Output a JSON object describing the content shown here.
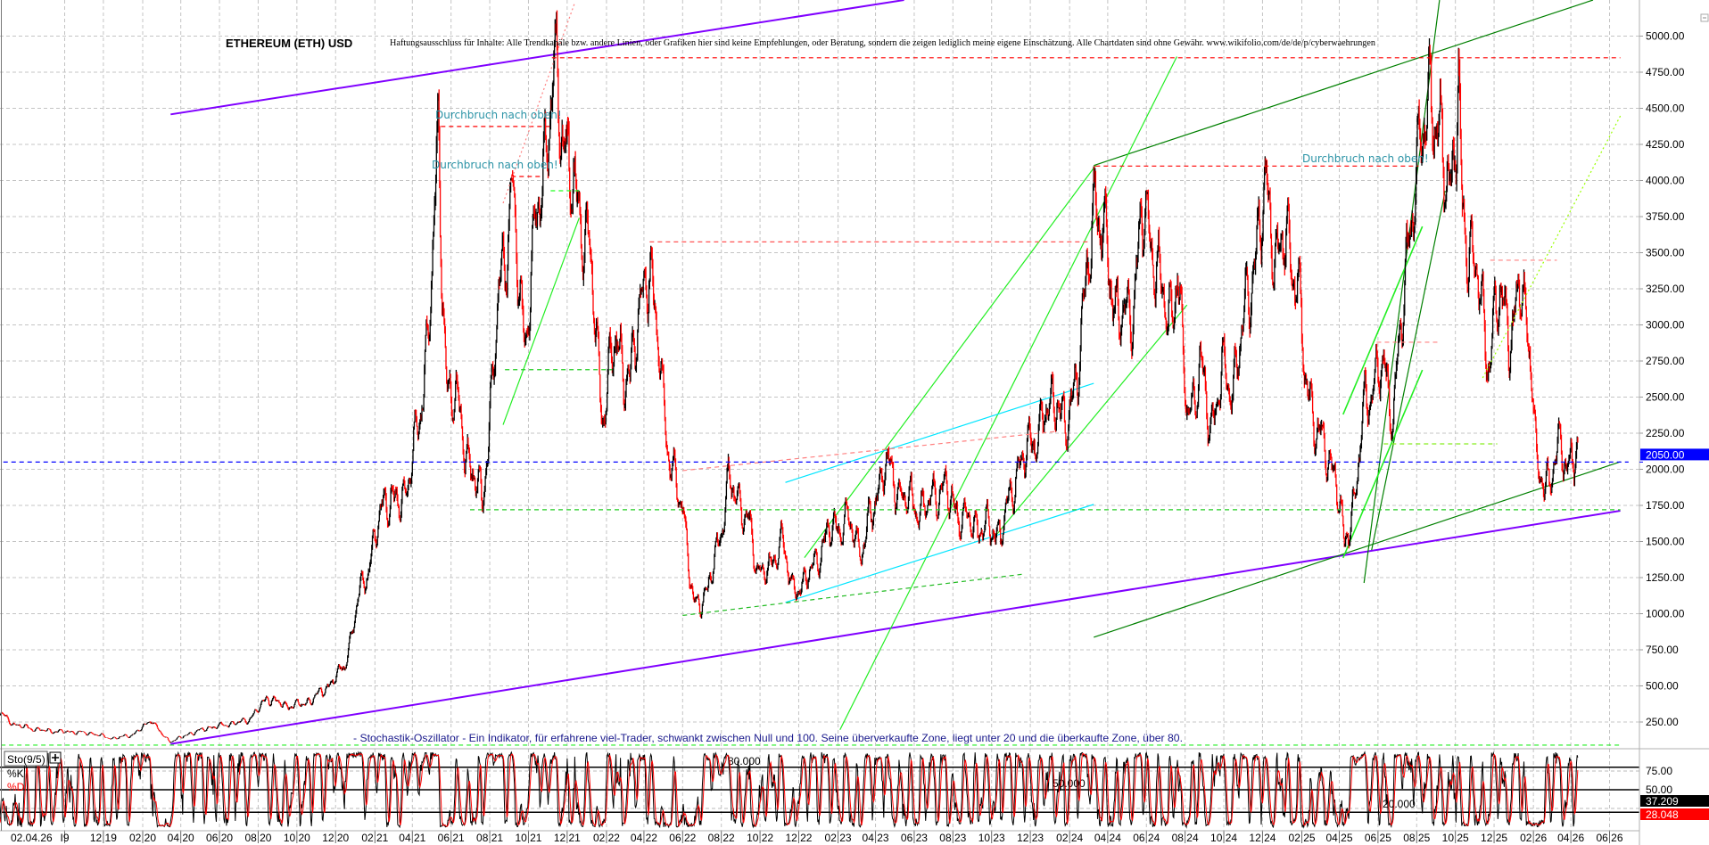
{
  "header": {
    "title": "ETHEREUM (ETH) USD",
    "disclaimer": "Haftungsausschluss für Inhalte: Alle Trendkanäle bzw. andere Linien, oder Grafiken hier sind keine Empfehlungen, oder Beratung, sondern die zeigen lediglich meine eigene Einschätzung. Alle Chartdaten sind ohne Gewähr. www.wikifolio.com/de/de/p/cyberwaehrungen"
  },
  "annotations": {
    "breakout_1": "Durchbruch nach oben!",
    "breakout_2": "Durchbruch nach oben!",
    "breakout_3": "Durchbruch nach oben!",
    "stochastic_note": "- Stochastik-Oszillator - Ein Indikator, für erfahrene viel-Trader, schwankt zwischen Null und 100. Seine überverkaufte Zone, liegt unter 20 und die überkaufte Zone, über 80."
  },
  "chart_data": [
    {
      "type": "candlestick",
      "title": "ETHEREUM (ETH) USD",
      "ylim": [
        0,
        5250
      ],
      "y_ticks": [
        "250.00",
        "500.00",
        "750.00",
        "1000.00",
        "1250.00",
        "1500.00",
        "1750.00",
        "2000.00",
        "2250.00",
        "2500.00",
        "2750.00",
        "3000.00",
        "3250.00",
        "3500.00",
        "3750.00",
        "4000.00",
        "4250.00",
        "4500.00",
        "4750.00",
        "5000.00"
      ],
      "grid": true,
      "current_price": {
        "value": 2050,
        "label": "2050.00",
        "color": "#0000ff"
      },
      "up_color": "#000000",
      "down_color": "#ff0000",
      "close_path": [
        [
          "2019-06-15",
          340
        ],
        [
          "2019-07-15",
          230
        ],
        [
          "2019-08-15",
          200
        ],
        [
          "2019-09-15",
          185
        ],
        [
          "2019-10-15",
          180
        ],
        [
          "2019-11-15",
          170
        ],
        [
          "2019-12-15",
          135
        ],
        [
          "2020-01-15",
          160
        ],
        [
          "2020-02-15",
          270
        ],
        [
          "2020-03-15",
          115
        ],
        [
          "2020-04-15",
          170
        ],
        [
          "2020-05-15",
          210
        ],
        [
          "2020-06-15",
          235
        ],
        [
          "2020-07-15",
          260
        ],
        [
          "2020-08-15",
          420
        ],
        [
          "2020-09-15",
          360
        ],
        [
          "2020-10-15",
          380
        ],
        [
          "2020-11-15",
          480
        ],
        [
          "2020-12-15",
          640
        ],
        [
          "2021-01-05",
          1100
        ],
        [
          "2021-01-20",
          1300
        ],
        [
          "2021-02-15",
          1800
        ],
        [
          "2021-03-15",
          1750
        ],
        [
          "2021-04-15",
          2400
        ],
        [
          "2021-05-12",
          4250
        ],
        [
          "2021-05-25",
          2600
        ],
        [
          "2021-06-15",
          2400
        ],
        [
          "2021-07-01",
          2000
        ],
        [
          "2021-07-20",
          1800
        ],
        [
          "2021-08-15",
          3200
        ],
        [
          "2021-09-05",
          3900
        ],
        [
          "2021-09-25",
          2900
        ],
        [
          "2021-10-15",
          3800
        ],
        [
          "2021-11-10",
          4700
        ],
        [
          "2021-11-28",
          4300
        ],
        [
          "2021-12-15",
          3800
        ],
        [
          "2022-01-05",
          3600
        ],
        [
          "2022-01-25",
          2400
        ],
        [
          "2022-02-15",
          2900
        ],
        [
          "2022-03-10",
          2600
        ],
        [
          "2022-04-03",
          3450
        ],
        [
          "2022-04-25",
          2900
        ],
        [
          "2022-05-12",
          2000
        ],
        [
          "2022-06-01",
          1800
        ],
        [
          "2022-06-18",
          1050
        ],
        [
          "2022-07-10",
          1150
        ],
        [
          "2022-08-12",
          1900
        ],
        [
          "2022-09-10",
          1700
        ],
        [
          "2022-09-25",
          1320
        ],
        [
          "2022-10-20",
          1300
        ],
        [
          "2022-11-05",
          1580
        ],
        [
          "2022-11-20",
          1150
        ],
        [
          "2022-12-15",
          1250
        ],
        [
          "2023-01-15",
          1550
        ],
        [
          "2023-02-15",
          1650
        ],
        [
          "2023-03-10",
          1450
        ],
        [
          "2023-04-15",
          2050
        ],
        [
          "2023-05-15",
          1800
        ],
        [
          "2023-06-15",
          1720
        ],
        [
          "2023-07-15",
          1880
        ],
        [
          "2023-08-18",
          1650
        ],
        [
          "2023-09-15",
          1600
        ],
        [
          "2023-10-15",
          1560
        ],
        [
          "2023-11-10",
          2000
        ],
        [
          "2023-12-15",
          2280
        ],
        [
          "2024-01-12",
          2550
        ],
        [
          "2024-01-25",
          2220
        ],
        [
          "2024-02-20",
          2950
        ],
        [
          "2024-03-12",
          3950
        ],
        [
          "2024-04-15",
          3100
        ],
        [
          "2024-05-05",
          3000
        ],
        [
          "2024-05-25",
          3750
        ],
        [
          "2024-06-15",
          3500
        ],
        [
          "2024-07-05",
          3000
        ],
        [
          "2024-07-20",
          3400
        ],
        [
          "2024-08-05",
          2350
        ],
        [
          "2024-08-25",
          2700
        ],
        [
          "2024-09-10",
          2300
        ],
        [
          "2024-09-28",
          2650
        ],
        [
          "2024-10-15",
          2600
        ],
        [
          "2024-11-12",
          3300
        ],
        [
          "2024-12-08",
          3950
        ],
        [
          "2024-12-25",
          3400
        ],
        [
          "2025-01-07",
          3650
        ],
        [
          "2025-01-25",
          3300
        ],
        [
          "2025-02-05",
          2700
        ],
        [
          "2025-03-01",
          2200
        ],
        [
          "2025-03-25",
          2000
        ],
        [
          "2025-04-09",
          1480
        ],
        [
          "2025-04-25",
          1800
        ],
        [
          "2025-05-12",
          2500
        ],
        [
          "2025-06-10",
          2700
        ],
        [
          "2025-06-25",
          2400
        ],
        [
          "2025-07-20",
          3700
        ],
        [
          "2025-08-23",
          4700
        ],
        [
          "2025-09-01",
          4300
        ],
        [
          "2025-09-25",
          4000
        ],
        [
          "2025-10-06",
          4550
        ],
        [
          "2025-10-11",
          3800
        ],
        [
          "2025-11-05",
          3300
        ],
        [
          "2025-11-21",
          2800
        ],
        [
          "2025-12-10",
          3200
        ],
        [
          "2025-12-31",
          2950
        ],
        [
          "2026-01-14",
          3300
        ],
        [
          "2026-01-31",
          2650
        ],
        [
          "2026-02-06",
          1950
        ],
        [
          "2026-02-25",
          1920
        ],
        [
          "2026-03-15",
          2150
        ],
        [
          "2026-03-25",
          2050
        ],
        [
          "2026-04-12",
          2080
        ]
      ],
      "x_ticks": [
        {
          "date": "2019-10-01",
          "label": "I9"
        },
        {
          "date": "2019-12-01",
          "label": "12 19"
        },
        {
          "date": "2020-02-01",
          "label": "02 20"
        },
        {
          "date": "2020-04-01",
          "label": "04 20"
        },
        {
          "date": "2020-06-01",
          "label": "06 20"
        },
        {
          "date": "2020-08-01",
          "label": "08 20"
        },
        {
          "date": "2020-10-01",
          "label": "10 20"
        },
        {
          "date": "2020-12-01",
          "label": "12 20"
        },
        {
          "date": "2021-02-01",
          "label": "02 21"
        },
        {
          "date": "2021-04-01",
          "label": "04 21"
        },
        {
          "date": "2021-06-01",
          "label": "06 21"
        },
        {
          "date": "2021-08-01",
          "label": "08 21"
        },
        {
          "date": "2021-10-01",
          "label": "10 21"
        },
        {
          "date": "2021-12-01",
          "label": "12 21"
        },
        {
          "date": "2022-02-01",
          "label": "02 22"
        },
        {
          "date": "2022-04-01",
          "label": "04 22"
        },
        {
          "date": "2022-06-01",
          "label": "06 22"
        },
        {
          "date": "2022-08-01",
          "label": "08 22"
        },
        {
          "date": "2022-10-01",
          "label": "10 22"
        },
        {
          "date": "2022-12-01",
          "label": "12 22"
        },
        {
          "date": "2023-02-01",
          "label": "02 23"
        },
        {
          "date": "2023-04-01",
          "label": "04 23"
        },
        {
          "date": "2023-06-01",
          "label": "06 23"
        },
        {
          "date": "2023-08-01",
          "label": "08 23"
        },
        {
          "date": "2023-10-01",
          "label": "10 23"
        },
        {
          "date": "2023-12-01",
          "label": "12 23"
        },
        {
          "date": "2024-02-01",
          "label": "02 24"
        },
        {
          "date": "2024-04-01",
          "label": "04 24"
        },
        {
          "date": "2024-06-01",
          "label": "06 24"
        },
        {
          "date": "2024-08-01",
          "label": "08 24"
        },
        {
          "date": "2024-10-01",
          "label": "10 24"
        },
        {
          "date": "2024-12-01",
          "label": "12 24"
        },
        {
          "date": "2025-02-01",
          "label": "02 25"
        },
        {
          "date": "2025-04-01",
          "label": "04 25"
        },
        {
          "date": "2025-06-01",
          "label": "06 25"
        },
        {
          "date": "2025-08-01",
          "label": "08 25"
        },
        {
          "date": "2025-10-01",
          "label": "10 25"
        },
        {
          "date": "2025-12-01",
          "label": "12 25"
        },
        {
          "date": "2026-02-01",
          "label": "02 26"
        },
        {
          "date": "2026-04-01",
          "label": "04 26"
        },
        {
          "date": "2026-06-01",
          "label": "06 26"
        }
      ],
      "first_x_label": "02.04.26",
      "trendlines": [
        {
          "color": "#8000ff",
          "style": "solid",
          "from": [
            "2020-03-16",
            4458
          ],
          "to": [
            "2023-05-16",
            5250
          ]
        },
        {
          "color": "#8000ff",
          "style": "solid",
          "from": [
            "2020-03-16",
            98
          ],
          "to": [
            "2026-06-18",
            1713
          ]
        },
        {
          "color": "#008000",
          "style": "solid",
          "from": [
            "2024-03-10",
            837
          ],
          "to": [
            "2026-06-18",
            2052
          ]
        },
        {
          "color": "#008000",
          "style": "solid",
          "from": [
            "2024-03-10",
            4104
          ],
          "to": [
            "2026-05-06",
            5250
          ]
        },
        {
          "color": "#008000",
          "style": "solid",
          "from": [
            "2025-05-10",
            1213
          ],
          "to": [
            "2025-09-06",
            5250
          ]
        },
        {
          "color": "#008000",
          "style": "solid",
          "from": [
            "2025-05-22",
            1441
          ],
          "to": [
            "2025-09-15",
            3929
          ]
        },
        {
          "color": "#22ee22",
          "style": "solid",
          "from": [
            "2025-04-07",
            2380
          ],
          "to": [
            "2025-08-10",
            3682
          ]
        },
        {
          "color": "#22ee22",
          "style": "solid",
          "from": [
            "2025-04-07",
            1386
          ],
          "to": [
            "2025-08-10",
            2688
          ]
        },
        {
          "color": "#22ee22",
          "style": "solid",
          "from": [
            "2023-02-04",
            196
          ],
          "to": [
            "2024-07-19",
            4858
          ]
        },
        {
          "color": "#22ee22",
          "style": "solid",
          "from": [
            "2022-12-10",
            1388
          ],
          "to": [
            "2024-03-13",
            4104
          ]
        },
        {
          "color": "#22ee22",
          "style": "solid",
          "from": [
            "2023-10-10",
            1554
          ],
          "to": [
            "2024-08-04",
            3138
          ]
        },
        {
          "color": "#22ee22",
          "style": "solid",
          "from": [
            "2021-08-22",
            2308
          ],
          "to": [
            "2021-12-20",
            3741
          ]
        },
        {
          "color": "#99ff00",
          "style": "dotted",
          "from": [
            "2025-11-13",
            2633
          ],
          "to": [
            "2026-06-18",
            4447
          ]
        },
        {
          "color": "#22cc22",
          "style": "dashed",
          "from": [
            "2021-07-01",
            1720
          ],
          "to": [
            "2026-06-18",
            1720
          ]
        },
        {
          "color": "#22cc22",
          "style": "dashed",
          "from": [
            "2021-08-25",
            2690
          ],
          "to": [
            "2022-02-10",
            2690
          ]
        },
        {
          "color": "#22ff22",
          "style": "dashed",
          "from": [
            "2021-11-05",
            3929
          ],
          "to": [
            "2021-12-20",
            3929
          ]
        },
        {
          "color": "#88ee22",
          "style": "dashed",
          "from": [
            "2025-06-10",
            2176
          ],
          "to": [
            "2025-12-06",
            2176
          ]
        },
        {
          "color": "#22bb22",
          "style": "dashed",
          "from": [
            "2022-06-01",
            988
          ],
          "to": [
            "2023-11-22",
            1275
          ]
        },
        {
          "color": "#22ee22",
          "style": "dashed",
          "from": [
            "2019-06-10",
            90
          ],
          "to": [
            "2026-06-18",
            90
          ]
        },
        {
          "color": "#00e5ff",
          "style": "solid",
          "from": [
            "2022-11-10",
            1909
          ],
          "to": [
            "2024-03-10",
            2595
          ]
        },
        {
          "color": "#00e5ff",
          "style": "solid",
          "from": [
            "2022-11-10",
            1078
          ],
          "to": [
            "2024-03-10",
            1757
          ]
        },
        {
          "color": "#ff0000",
          "style": "dashed",
          "from": [
            "2021-11-07",
            4850
          ],
          "to": [
            "2026-06-18",
            4850
          ]
        },
        {
          "color": "#ff0000",
          "style": "dashed",
          "from": [
            "2021-05-16",
            4374
          ],
          "to": [
            "2021-11-04",
            4374
          ]
        },
        {
          "color": "#ff0000",
          "style": "dashed",
          "from": [
            "2021-09-04",
            4028
          ],
          "to": [
            "2021-10-22",
            4028
          ]
        },
        {
          "color": "#ff0000",
          "style": "dashed",
          "from": [
            "2024-03-13",
            4100
          ],
          "to": [
            "2025-08-04",
            4100
          ]
        },
        {
          "color": "#ff5555",
          "style": "dashed",
          "from": [
            "2022-04-10",
            3575
          ],
          "to": [
            "2024-03-04",
            3575
          ]
        },
        {
          "color": "#ff8080",
          "style": "dashed",
          "from": [
            "2025-11-25",
            3448
          ],
          "to": [
            "2026-03-10",
            3448
          ]
        },
        {
          "color": "#ff8080",
          "style": "dashed",
          "from": [
            "2025-05-30",
            2880
          ],
          "to": [
            "2025-09-04",
            2880
          ]
        },
        {
          "color": "#ff8080",
          "style": "dashed",
          "from": [
            "2022-06-01",
            1991
          ],
          "to": [
            "2024-01-13",
            2263
          ]
        },
        {
          "color": "#ff8080",
          "style": "dotted",
          "from": [
            "2021-08-22",
            3843
          ],
          "to": [
            "2021-12-13",
            5231
          ]
        },
        {
          "color": "#0000ff",
          "style": "dashed",
          "from": [
            "2019-06-01",
            2050
          ],
          "to": [
            "2026-07-01",
            2050
          ]
        }
      ]
    },
    {
      "type": "line",
      "title": "Sto(9/5)",
      "ylim": [
        0,
        100
      ],
      "series": [
        {
          "name": "%K",
          "color": "#000000",
          "last_value": "37.209"
        },
        {
          "name": "%D",
          "color": "#ff0000",
          "last_value": "28.048"
        }
      ],
      "levels": [
        {
          "value": 80,
          "label": "80.000"
        },
        {
          "value": 50,
          "label": "50.000"
        },
        {
          "value": 20,
          "label": "20.000"
        }
      ],
      "y_ticks": [
        {
          "value": 75,
          "label": "75.00"
        },
        {
          "value": 50,
          "label": "50.00"
        },
        {
          "value": 25,
          "label": ""
        }
      ]
    }
  ]
}
